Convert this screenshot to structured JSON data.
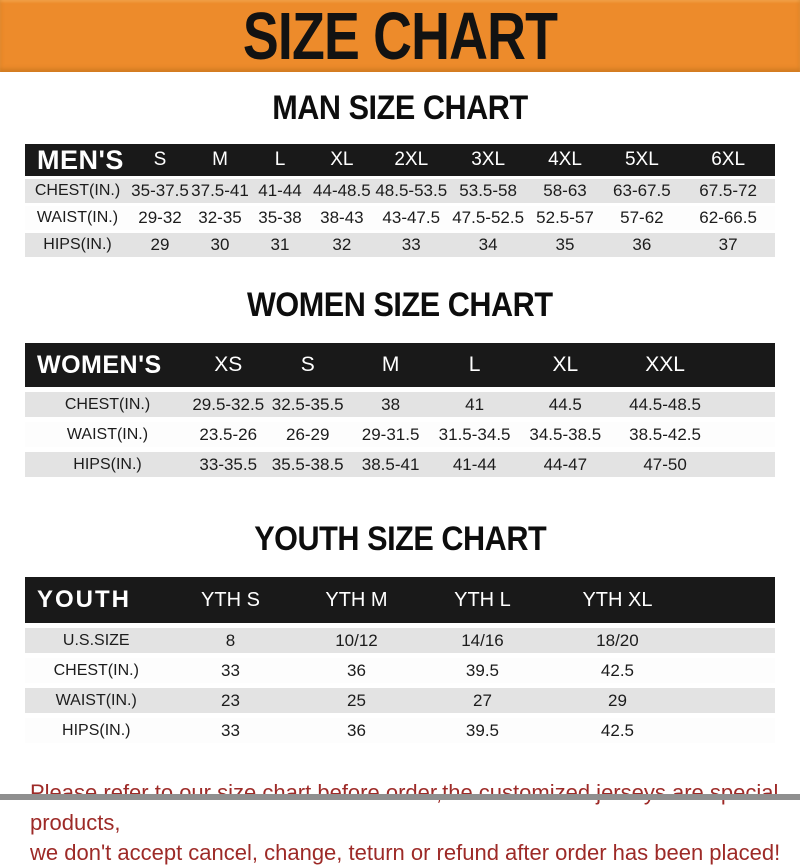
{
  "banner": {
    "title": "SIZE CHART"
  },
  "sections": [
    {
      "heading": "MAN SIZE CHART",
      "table": {
        "header_label": "MEN'S",
        "columns": [
          "S",
          "M",
          "L",
          "XL",
          "2XL",
          "3XL",
          "4XL",
          "5XL",
          "6XL"
        ],
        "rows": [
          {
            "label": "CHEST(IN.)",
            "values": [
              "35-37.5",
              "37.5-41",
              "41-44",
              "44-48.5",
              "48.5-53.5",
              "53.5-58",
              "58-63",
              "63-67.5",
              "67.5-72"
            ]
          },
          {
            "label": "WAIST(IN.)",
            "values": [
              "29-32",
              "32-35",
              "35-38",
              "38-43",
              "43-47.5",
              "47.5-52.5",
              "52.5-57",
              "57-62",
              "62-66.5"
            ]
          },
          {
            "label": "HIPS(IN.)",
            "values": [
              "29",
              "30",
              "31",
              "32",
              "33",
              "34",
              "35",
              "36",
              "37"
            ]
          }
        ]
      }
    },
    {
      "heading": "WOMEN SIZE CHART",
      "table": {
        "header_label": "WOMEN'S",
        "columns": [
          "XS",
          "S",
          "M",
          "L",
          "XL",
          "XXL"
        ],
        "rows": [
          {
            "label": "CHEST(IN.)",
            "values": [
              "29.5-32.5",
              "32.5-35.5",
              "38",
              "41",
              "44.5",
              "44.5-48.5"
            ]
          },
          {
            "label": "WAIST(IN.)",
            "values": [
              "23.5-26",
              "26-29",
              "29-31.5",
              "31.5-34.5",
              "34.5-38.5",
              "38.5-42.5"
            ]
          },
          {
            "label": "HIPS(IN.)",
            "values": [
              "33-35.5",
              "35.5-38.5",
              "38.5-41",
              "41-44",
              "44-47",
              "47-50"
            ]
          }
        ]
      }
    },
    {
      "heading": "YOUTH SIZE CHART",
      "table": {
        "header_label": "YOUTH",
        "columns": [
          "YTH S",
          "YTH M",
          "YTH L",
          "YTH XL"
        ],
        "rows": [
          {
            "label": "U.S.SIZE",
            "values": [
              "8",
              "10/12",
              "14/16",
              "18/20"
            ]
          },
          {
            "label": "CHEST(IN.)",
            "values": [
              "33",
              "36",
              "39.5",
              "42.5"
            ]
          },
          {
            "label": "WAIST(IN.)",
            "values": [
              "23",
              "25",
              "27",
              "29"
            ]
          },
          {
            "label": "HIPS(IN.)",
            "values": [
              "33",
              "36",
              "39.5",
              "42.5"
            ]
          }
        ]
      }
    }
  ],
  "footer": {
    "line1": "Please refer to our size chart before order,the customized jerseys are special products,",
    "line2": "we don't accept cancel, change, teturn or refund after order has been placed!"
  },
  "colors": {
    "banner_orange": "#ed8b2b",
    "header_bar_black": "#191919",
    "row_stripe_gray": "#e3e3e3",
    "footer_red": "#9d2a27"
  }
}
